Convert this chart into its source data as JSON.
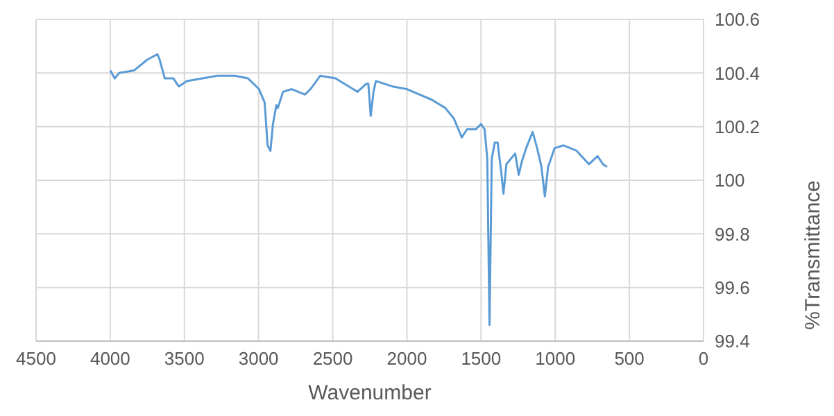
{
  "chart_data": {
    "type": "line",
    "xlabel": "Wavenumber",
    "ylabel": "%Transmittance",
    "color": "#5b9bd5",
    "x": [
      4000,
      3970,
      3940,
      3838,
      3750,
      3682,
      3667,
      3632,
      3574,
      3538,
      3484,
      3278,
      3160,
      3071,
      2997,
      2959,
      2939,
      2920,
      2903,
      2880,
      2870,
      2835,
      2776,
      2687,
      2650,
      2584,
      2481,
      2363,
      2333,
      2274,
      2260,
      2244,
      2225,
      2209,
      2097,
      2000,
      1831,
      1742,
      1683,
      1630,
      1595,
      1535,
      1500,
      1476,
      1458,
      1443,
      1428,
      1408,
      1388,
      1364,
      1349,
      1329,
      1270,
      1246,
      1225,
      1196,
      1152,
      1122,
      1093,
      1070,
      1048,
      1004,
      945,
      856,
      773,
      714,
      679,
      650
    ],
    "values": [
      100.41,
      100.38,
      100.4,
      100.41,
      100.45,
      100.47,
      100.45,
      100.38,
      100.38,
      100.35,
      100.37,
      100.39,
      100.39,
      100.38,
      100.34,
      100.29,
      100.13,
      100.11,
      100.21,
      100.28,
      100.27,
      100.33,
      100.34,
      100.32,
      100.34,
      100.39,
      100.38,
      100.34,
      100.33,
      100.36,
      100.36,
      100.24,
      100.33,
      100.37,
      100.35,
      100.34,
      100.3,
      100.27,
      100.23,
      100.16,
      100.19,
      100.19,
      100.21,
      100.19,
      100.08,
      99.46,
      100.08,
      100.14,
      100.14,
      100.03,
      99.95,
      100.06,
      100.1,
      100.02,
      100.07,
      100.12,
      100.18,
      100.12,
      100.05,
      99.94,
      100.05,
      100.12,
      100.13,
      100.11,
      100.06,
      100.09,
      100.06,
      100.05
    ],
    "xlim": [
      4500,
      0
    ],
    "xticks": [
      4500,
      4000,
      3500,
      3000,
      2500,
      2000,
      1500,
      1000,
      500,
      0
    ],
    "ylim": [
      99.4,
      100.6
    ],
    "yticks": [
      99.4,
      99.6,
      99.8,
      100,
      100.2,
      100.4,
      100.6
    ],
    "grid": true
  }
}
